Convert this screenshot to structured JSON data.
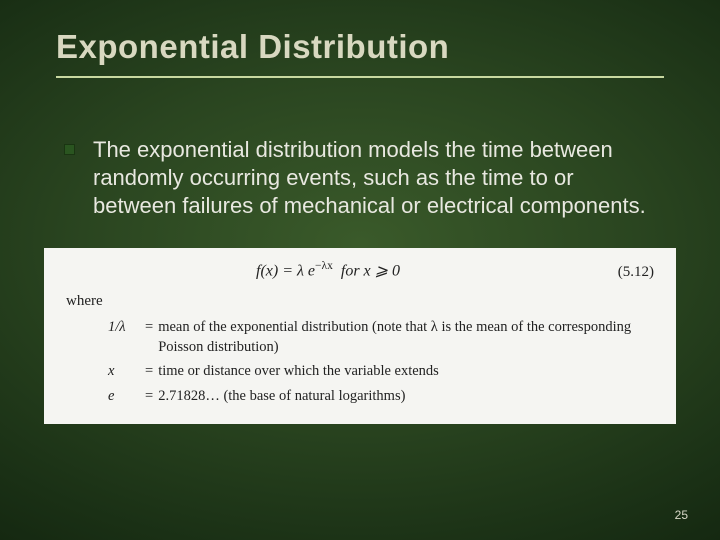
{
  "slide": {
    "title": "Exponential Distribution",
    "bullet_text": "The exponential distribution models the time between randomly occurring events, such as the time to or between failures of mechanical or electrical components.",
    "page_number": "25"
  },
  "formula": {
    "expr_html": "f(x) = λ e<sup>−λx</sup>  for x ⩾ 0",
    "eq_number": "(5.12)",
    "where_label": "where",
    "defs": [
      {
        "sym": "1/λ",
        "text": "mean of the exponential distribution (note that λ is the mean of the corresponding Poisson distribution)"
      },
      {
        "sym": "x",
        "text": "time or distance over which the variable extends"
      },
      {
        "sym": "e",
        "text": "2.71828… (the base of natural logarithms)"
      }
    ]
  },
  "style": {
    "title_color": "#d8d8c0",
    "underline_color": "#c8d8a0",
    "bullet_fill": "#2a5520",
    "text_color": "#e8e8e0",
    "formula_bg": "#f5f5f2",
    "formula_text": "#222222"
  }
}
